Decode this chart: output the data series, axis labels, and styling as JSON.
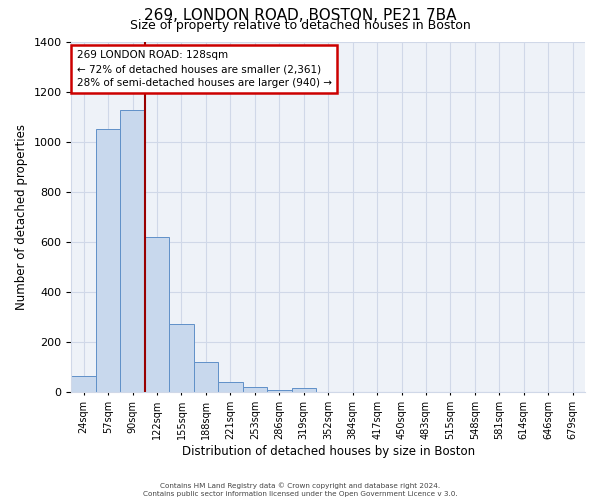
{
  "title": "269, LONDON ROAD, BOSTON, PE21 7BA",
  "subtitle": "Size of property relative to detached houses in Boston",
  "xlabel": "Distribution of detached houses by size in Boston",
  "ylabel": "Number of detached properties",
  "footnote1": "Contains HM Land Registry data © Crown copyright and database right 2024.",
  "footnote2": "Contains public sector information licensed under the Open Government Licence v 3.0.",
  "bar_labels": [
    "24sqm",
    "57sqm",
    "90sqm",
    "122sqm",
    "155sqm",
    "188sqm",
    "221sqm",
    "253sqm",
    "286sqm",
    "319sqm",
    "352sqm",
    "384sqm",
    "417sqm",
    "450sqm",
    "483sqm",
    "515sqm",
    "548sqm",
    "581sqm",
    "614sqm",
    "646sqm",
    "679sqm"
  ],
  "bar_values": [
    65,
    1050,
    1125,
    620,
    270,
    120,
    40,
    18,
    8,
    15,
    0,
    0,
    0,
    0,
    0,
    0,
    0,
    0,
    0,
    0,
    0
  ],
  "bar_color": "#c8d8ed",
  "bar_edge_color": "#6090c8",
  "vline_x_idx": 3,
  "vline_color": "#990000",
  "annotation_text_line1": "269 LONDON ROAD: 128sqm",
  "annotation_text_line2": "← 72% of detached houses are smaller (2,361)",
  "annotation_text_line3": "28% of semi-detached houses are larger (940) →",
  "annotation_box_color": "#cc0000",
  "annotation_box_facecolor": "white",
  "ylim": [
    0,
    1400
  ],
  "yticks": [
    0,
    200,
    400,
    600,
    800,
    1000,
    1200,
    1400
  ],
  "grid_color": "#d0d8e8",
  "background_color": "white",
  "plot_bg_color": "#eef2f8",
  "title_fontsize": 11,
  "subtitle_fontsize": 9
}
